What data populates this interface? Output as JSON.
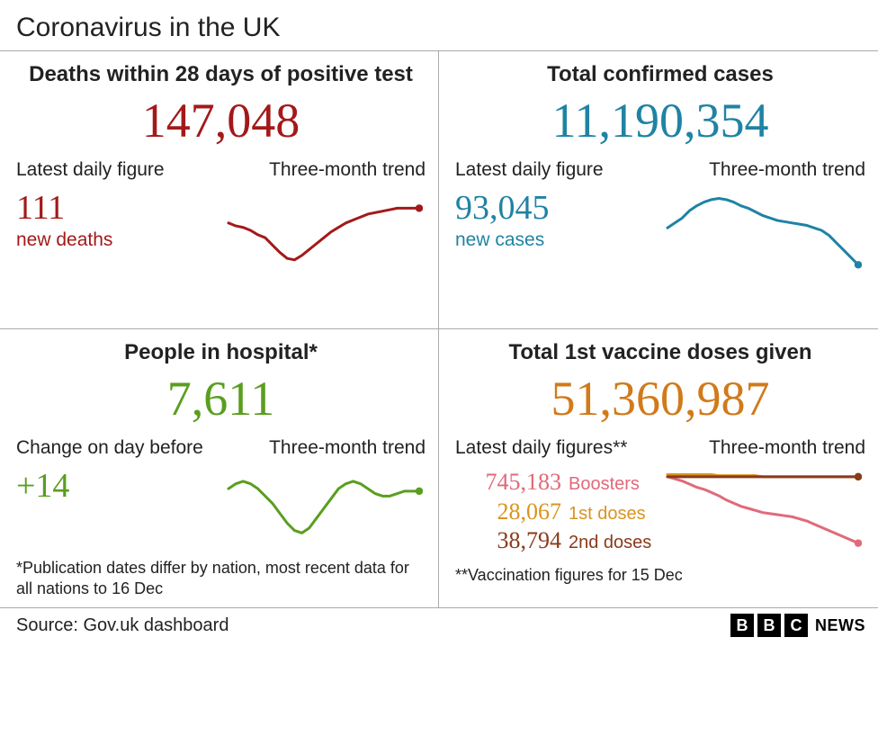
{
  "title": "Coronavirus in the UK",
  "panels": {
    "deaths": {
      "title": "Deaths within 28 days of positive test",
      "value": "147,048",
      "color": "#a31919",
      "daily_label": "Latest daily figure",
      "daily_value": "111",
      "daily_caption": "new deaths",
      "trend_label": "Three-month trend",
      "trend": {
        "color": "#a31919",
        "line_width": 3,
        "points": [
          50,
          48,
          47,
          45,
          42,
          40,
          35,
          30,
          26,
          25,
          28,
          32,
          36,
          40,
          44,
          47,
          50,
          52,
          54,
          56,
          57,
          58,
          59,
          60,
          60,
          60,
          60
        ],
        "y_range": [
          20,
          70
        ]
      }
    },
    "cases": {
      "title": "Total confirmed cases",
      "value": "11,190,354",
      "color": "#1f83a3",
      "daily_label": "Latest daily figure",
      "daily_value": "93,045",
      "daily_caption": "new cases",
      "trend_label": "Three-month trend",
      "trend": {
        "color": "#1f83a3",
        "line_width": 3,
        "points": [
          42,
          46,
          50,
          56,
          60,
          63,
          65,
          66,
          65,
          63,
          60,
          58,
          55,
          52,
          50,
          48,
          47,
          46,
          45,
          44,
          42,
          40,
          36,
          30,
          24,
          18,
          12
        ],
        "y_range": [
          10,
          70
        ]
      }
    },
    "hospital": {
      "title": "People in hospital*",
      "value": "7,611",
      "color": "#5a9e1f",
      "daily_label": "Change on day before",
      "daily_value": "+14",
      "daily_caption": "",
      "trend_label": "Three-month trend",
      "trend": {
        "color": "#5a9e1f",
        "line_width": 3,
        "points": [
          48,
          50,
          51,
          50,
          48,
          45,
          42,
          38,
          34,
          31,
          30,
          32,
          36,
          40,
          44,
          48,
          50,
          51,
          50,
          48,
          46,
          45,
          45,
          46,
          47,
          47,
          47
        ],
        "y_range": [
          25,
          55
        ]
      },
      "footnote": "*Publication dates differ by nation,\n most recent data for all nations to 16 Dec"
    },
    "vaccine": {
      "title": "Total 1st vaccine doses given",
      "value": "51,360,987",
      "color": "#d17a1a",
      "daily_label": "Latest daily figures**",
      "trend_label": "Three-month trend",
      "rows": [
        {
          "value": "745,183",
          "label": "Boosters",
          "color": "#e06a7a"
        },
        {
          "value": "28,067",
          "label": "1st doses",
          "color": "#d9941f"
        },
        {
          "value": "38,794",
          "label": "2nd doses",
          "color": "#8a3a1a"
        }
      ],
      "trend_multi": {
        "line_width": 3,
        "y_range": [
          5,
          75
        ],
        "series": [
          {
            "color": "#e06a7a",
            "points": [
              70,
              68,
              66,
              63,
              60,
              58,
              55,
              52,
              48,
              45,
              42,
              40,
              38,
              36,
              35,
              34,
              33,
              32,
              30,
              28,
              25,
              22,
              19,
              16,
              13,
              10,
              7
            ]
          },
          {
            "color": "#d9941f",
            "points": [
              72,
              72,
              72,
              72,
              72,
              72,
              72,
              71,
              71,
              71,
              71,
              71,
              71,
              70,
              70,
              70,
              70,
              70,
              70,
              70,
              70,
              70,
              70,
              70,
              70,
              70,
              70
            ]
          },
          {
            "color": "#8a3a1a",
            "points": [
              70,
              70,
              70,
              70,
              70,
              70,
              70,
              70,
              70,
              70,
              70,
              70,
              70,
              70,
              70,
              70,
              70,
              70,
              70,
              70,
              70,
              70,
              70,
              70,
              70,
              70,
              70
            ]
          }
        ]
      },
      "footnote": "**Vaccination figures for 15 Dec"
    }
  },
  "source": "Source: Gov.uk dashboard",
  "logo": {
    "b1": "B",
    "b2": "B",
    "b3": "C",
    "news": "NEWS"
  }
}
